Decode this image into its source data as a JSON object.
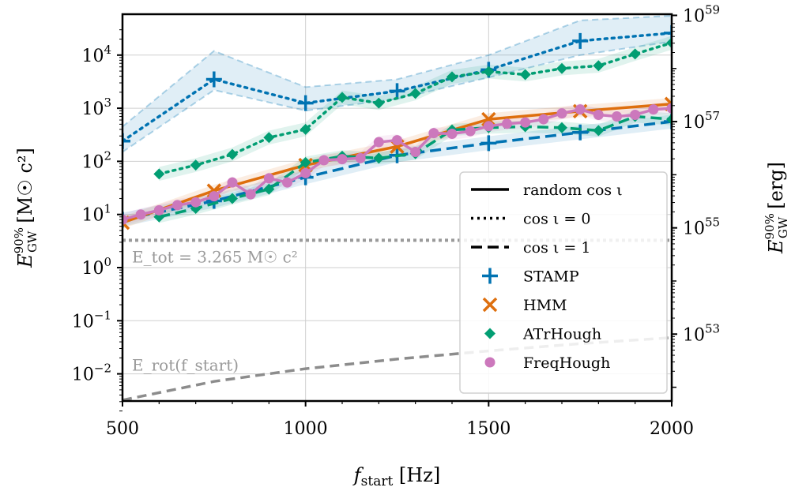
{
  "chart_data": {
    "type": "line",
    "title": "",
    "xlabel": "f_start [Hz]",
    "ylabel_left": "E_GW^90% [M☉ c²]",
    "ylabel_right": "E_GW^90% [erg]",
    "xlim": [
      500,
      2000
    ],
    "ylim_log10": [
      -2.7,
      4.6
    ],
    "y_scale": "log",
    "grid": true,
    "x_ticks": [
      500,
      1000,
      1500,
      2000
    ],
    "x_tick_labels": [
      "500",
      "1000",
      "1500",
      "2000"
    ],
    "y_ticks_log10": [
      -2,
      -1,
      0,
      1,
      2,
      3,
      4
    ],
    "y_tick_labels": [
      {
        "base": "10",
        "exp": "−2"
      },
      {
        "base": "10",
        "exp": "−1"
      },
      {
        "base": "10",
        "exp": "0"
      },
      {
        "base": "10",
        "exp": "1"
      },
      {
        "base": "10",
        "exp": "2"
      },
      {
        "base": "10",
        "exp": "3"
      },
      {
        "base": "10",
        "exp": "4"
      }
    ],
    "right_axis": {
      "unit": "erg",
      "msun_c2_in_erg": 1.787e+54,
      "ticks_log10": [
        53,
        55,
        57,
        59
      ],
      "tick_labels": [
        {
          "base": "10",
          "exp": "53"
        },
        {
          "base": "10",
          "exp": "55"
        },
        {
          "base": "10",
          "exp": "57"
        },
        {
          "base": "10",
          "exp": "59"
        }
      ]
    },
    "reference_lines": [
      {
        "name": "E_tot",
        "label": "E_tot = 3.265 M☉ c²",
        "value": 3.265,
        "style": "dotted",
        "color": "#9a9a9a"
      },
      {
        "name": "E_rot",
        "label": "E_rot(f_start)",
        "style": "dashed",
        "color": "#8c8c8c",
        "x": [
          500,
          750,
          1000,
          1250,
          1500,
          1750,
          2000
        ],
        "y": [
          0.0032,
          0.0072,
          0.0125,
          0.019,
          0.027,
          0.037,
          0.048
        ]
      }
    ],
    "legend": {
      "placement": "lower-right",
      "entries": [
        {
          "label": "random cos ι",
          "kind": "line-solid"
        },
        {
          "label": "cos ι = 0",
          "kind": "line-dotted"
        },
        {
          "label": "cos ι = 1",
          "kind": "line-dashed"
        },
        {
          "label": "STAMP",
          "kind": "marker",
          "marker": "plus",
          "color": "#0173b2"
        },
        {
          "label": "HMM",
          "kind": "marker",
          "marker": "x",
          "color": "#de6f0e"
        },
        {
          "label": "ATrHough",
          "kind": "marker",
          "marker": "diamond",
          "color": "#029e73"
        },
        {
          "label": "FreqHough",
          "kind": "marker",
          "marker": "circle",
          "color": "#cc78bc"
        }
      ]
    },
    "series": [
      {
        "name": "STAMP",
        "color": "#0173b2",
        "marker": "plus",
        "x": [
          500,
          750,
          1000,
          1250,
          1500,
          1750,
          2000
        ],
        "dotted": [
          240,
          3500,
          1250,
          2100,
          5300,
          18500,
          26000
        ],
        "band_low": [
          150,
          2200,
          900,
          1500,
          3800,
          10000,
          18000
        ],
        "band_high": [
          450,
          12000,
          2500,
          3500,
          10000,
          45000,
          55000
        ],
        "dashed": [
          8,
          18,
          50,
          130,
          220,
          350,
          560
        ]
      },
      {
        "name": "HMM",
        "color": "#de6f0e",
        "marker": "x",
        "x": [
          500,
          750,
          1000,
          1250,
          1500,
          1750,
          2000
        ],
        "solid": [
          7,
          28,
          85,
          190,
          620,
          880,
          1200
        ]
      },
      {
        "name": "ATrHough",
        "color": "#029e73",
        "marker": "diamond",
        "x_dotted": [
          600,
          700,
          800,
          900,
          1000,
          1100,
          1200,
          1300,
          1400,
          1500,
          1600,
          1700,
          1800,
          1900,
          2000
        ],
        "dotted": [
          58,
          85,
          135,
          280,
          400,
          1600,
          1250,
          1900,
          3900,
          4900,
          4300,
          5600,
          6300,
          10500,
          17000
        ],
        "x_dashed": [
          600,
          700,
          800,
          900,
          1000,
          1100,
          1200,
          1300,
          1400,
          1500,
          1600,
          1700,
          1800,
          1900,
          2000
        ],
        "dashed": [
          9,
          13,
          20,
          30,
          95,
          125,
          115,
          140,
          390,
          430,
          450,
          430,
          380,
          700,
          620
        ]
      },
      {
        "name": "FreqHough",
        "color": "#cc78bc",
        "marker": "circle",
        "x": [
          500,
          550,
          600,
          650,
          700,
          750,
          800,
          850,
          900,
          950,
          1000,
          1050,
          1100,
          1150,
          1200,
          1250,
          1300,
          1350,
          1400,
          1450,
          1500,
          1550,
          1600,
          1650,
          1700,
          1750,
          1800,
          1850,
          1900,
          1950,
          2000
        ],
        "solid": [
          8,
          10,
          12,
          15,
          17,
          22,
          40,
          24,
          48,
          40,
          60,
          105,
          110,
          115,
          230,
          250,
          150,
          340,
          330,
          370,
          460,
          510,
          540,
          620,
          800,
          950,
          750,
          700,
          750,
          950,
          1000
        ]
      }
    ]
  }
}
